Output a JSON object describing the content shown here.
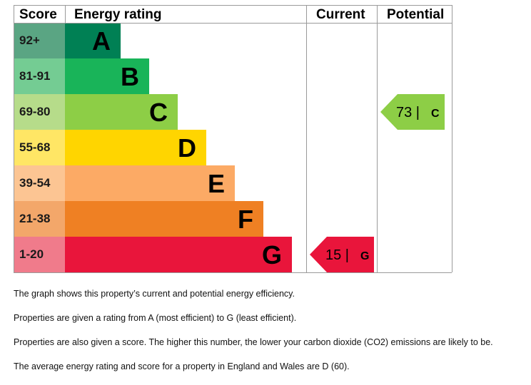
{
  "chart_data": {
    "type": "bar",
    "headers": {
      "score": "Score",
      "rating": "Energy rating",
      "current": "Current",
      "potential": "Potential"
    },
    "bands": [
      {
        "score": "92+",
        "letter": "A",
        "color": "#008054"
      },
      {
        "score": "81-91",
        "letter": "B",
        "color": "#19b459"
      },
      {
        "score": "69-80",
        "letter": "C",
        "color": "#8dce46"
      },
      {
        "score": "55-68",
        "letter": "D",
        "color": "#ffd500"
      },
      {
        "score": "39-54",
        "letter": "E",
        "color": "#fcaa65"
      },
      {
        "score": "21-38",
        "letter": "F",
        "color": "#ef8023"
      },
      {
        "score": "1-20",
        "letter": "G",
        "color": "#e9153b"
      }
    ],
    "score_column_colors": [
      "#5aa583",
      "#74cc93",
      "#b6dc8a",
      "#ffe665",
      "#fcc593",
      "#f3a76a",
      "#f07b8b"
    ],
    "current": {
      "value": 15,
      "letter": "G",
      "label": "15 |",
      "color": "#e9153b"
    },
    "potential": {
      "value": 73,
      "letter": "C",
      "label": "73 |",
      "color": "#8dce46"
    }
  },
  "notes": [
    "The graph shows this property’s current and potential energy efficiency.",
    "Properties are given a rating from A (most efficient) to G (least efficient).",
    "Properties are also given a score. The higher this number, the lower your carbon dioxide (CO2) emissions are likely to be.",
    "The average energy rating and score for a property in England and Wales are D (60)."
  ]
}
